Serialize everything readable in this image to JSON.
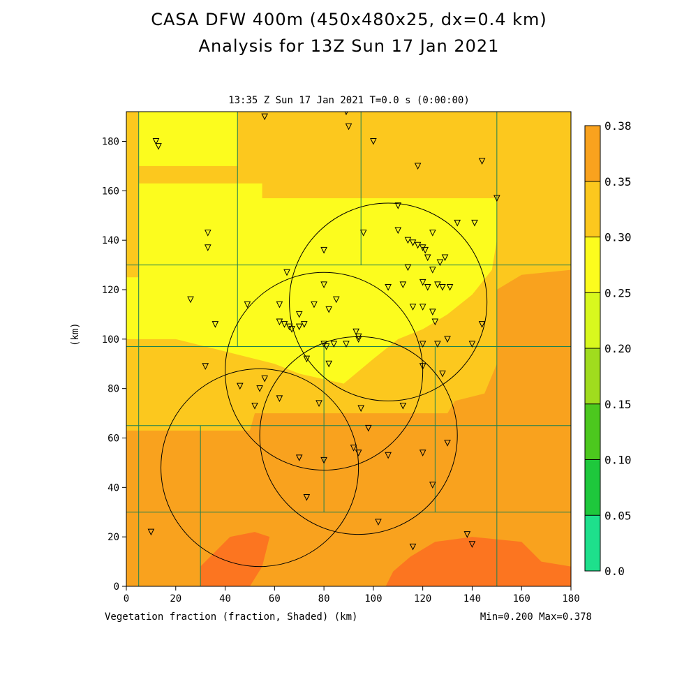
{
  "header": {
    "title_line1": "CASA DFW 400m (450x480x25, dx=0.4 km)",
    "title_line2": "Analysis for 13Z Sun 17 Jan 2021",
    "subtitle": "13:35 Z Sun 17 Jan 2021   T=0.0 s (0:00:00)"
  },
  "footer": {
    "field_label": "Vegetation fraction (fraction, Shaded)  (km)",
    "min_max": "Min=0.200 Max=0.378"
  },
  "colors": {
    "c025_030": "#fcc81e",
    "c030_035": "#f9a21e",
    "c035_038": "#fc7520",
    "c020_025": "#fcfc1e",
    "border": "#1e8050",
    "frame": "#000000"
  },
  "chart_data": {
    "type": "heatmap",
    "title": "CASA DFW 400m (450x480x25, dx=0.4 km)",
    "subtitle": "Analysis for 13Z Sun 17 Jan 2021",
    "time_label": "13:35 Z Sun 17 Jan 2021   T=0.0 s (0:00:00)",
    "xlabel": "(km)",
    "ylabel": "(km)",
    "field": "Vegetation fraction (fraction, Shaded)",
    "xlim": [
      0,
      180
    ],
    "ylim": [
      0,
      192
    ],
    "xticks": [
      0,
      20,
      40,
      60,
      80,
      100,
      120,
      140,
      160,
      180
    ],
    "yticks": [
      0,
      20,
      40,
      60,
      80,
      100,
      120,
      140,
      160,
      180
    ],
    "min": 0.2,
    "max": 0.378,
    "colorbar": {
      "levels": [
        "0.0",
        "0.05",
        "0.10",
        "0.15",
        "0.20",
        "0.25",
        "0.30",
        "0.35",
        "0.38"
      ],
      "colors": [
        "#1ee08c",
        "#1ec83c",
        "#4cc81e",
        "#a0dc1e",
        "#d8f81e",
        "#fcfc1e",
        "#fcc81e",
        "#f9a21e"
      ]
    },
    "regions": [
      {
        "range": "0.30-0.35",
        "color": "#f9a21e",
        "polygon": [
          [
            0,
            0
          ],
          [
            180,
            0
          ],
          [
            180,
            192
          ],
          [
            0,
            192
          ]
        ]
      },
      {
        "range": "0.25-0.30",
        "color": "#fcc81e",
        "polygon": [
          [
            0,
            63
          ],
          [
            50,
            63
          ],
          [
            52,
            70
          ],
          [
            130,
            70
          ],
          [
            133,
            75
          ],
          [
            145,
            78
          ],
          [
            150,
            90
          ],
          [
            150,
            120
          ],
          [
            160,
            126
          ],
          [
            180,
            128
          ],
          [
            180,
            192
          ],
          [
            0,
            192
          ]
        ]
      },
      {
        "range": "0.20-0.25",
        "color": "#fcfc1e",
        "polygon": [
          [
            5,
            192
          ],
          [
            45,
            192
          ],
          [
            45,
            170
          ],
          [
            5,
            170
          ]
        ]
      },
      {
        "range": "0.20-0.25",
        "color": "#fcfc1e",
        "polygon": [
          [
            0,
            125
          ],
          [
            5,
            125
          ],
          [
            5,
            163
          ],
          [
            55,
            163
          ],
          [
            55,
            157
          ],
          [
            150,
            157
          ],
          [
            150,
            140
          ],
          [
            148,
            128
          ],
          [
            140,
            118
          ],
          [
            130,
            110
          ],
          [
            120,
            104
          ],
          [
            110,
            100
          ],
          [
            100,
            92
          ],
          [
            88,
            82
          ],
          [
            70,
            86
          ],
          [
            60,
            90
          ],
          [
            40,
            95
          ],
          [
            20,
            100
          ],
          [
            0,
            100
          ]
        ]
      },
      {
        "range": "0.35-0.38",
        "color": "#fc7520",
        "polygon": [
          [
            30,
            0
          ],
          [
            50,
            0
          ],
          [
            55,
            8
          ],
          [
            58,
            20
          ],
          [
            52,
            22
          ],
          [
            42,
            20
          ],
          [
            30,
            8
          ]
        ]
      },
      {
        "range": "0.35-0.38",
        "color": "#fc7520",
        "polygon": [
          [
            105,
            0
          ],
          [
            180,
            0
          ],
          [
            180,
            8
          ],
          [
            168,
            10
          ],
          [
            160,
            18
          ],
          [
            140,
            20
          ],
          [
            125,
            18
          ],
          [
            115,
            12
          ],
          [
            108,
            6
          ]
        ]
      }
    ],
    "county_lines": [
      [
        [
          0,
          130
        ],
        [
          180,
          130
        ]
      ],
      [
        [
          0,
          97
        ],
        [
          180,
          97
        ]
      ],
      [
        [
          0,
          65
        ],
        [
          180,
          65
        ]
      ],
      [
        [
          5,
          0
        ],
        [
          5,
          192
        ]
      ],
      [
        [
          45,
          97
        ],
        [
          45,
          192
        ]
      ],
      [
        [
          95,
          130
        ],
        [
          95,
          192
        ]
      ],
      [
        [
          150,
          0
        ],
        [
          150,
          192
        ]
      ],
      [
        [
          125,
          30
        ],
        [
          125,
          97
        ]
      ],
      [
        [
          80,
          30
        ],
        [
          80,
          97
        ]
      ],
      [
        [
          30,
          0
        ],
        [
          30,
          65
        ]
      ],
      [
        [
          0,
          30
        ],
        [
          180,
          30
        ]
      ]
    ],
    "range_rings": [
      {
        "center": [
          106,
          115
        ],
        "radius": 40
      },
      {
        "center": [
          80,
          87
        ],
        "radius": 40
      },
      {
        "center": [
          94,
          61
        ],
        "radius": 40
      },
      {
        "center": [
          54,
          48
        ],
        "radius": 40
      }
    ],
    "stations": [
      [
        12,
        180
      ],
      [
        13,
        178
      ],
      [
        56,
        190
      ],
      [
        89,
        192
      ],
      [
        90,
        186
      ],
      [
        100,
        180
      ],
      [
        118,
        170
      ],
      [
        144,
        172
      ],
      [
        150,
        157
      ],
      [
        33,
        143
      ],
      [
        33,
        137
      ],
      [
        110,
        154
      ],
      [
        96,
        143
      ],
      [
        110,
        144
      ],
      [
        114,
        140
      ],
      [
        116,
        139
      ],
      [
        118,
        138
      ],
      [
        120,
        137
      ],
      [
        121,
        136
      ],
      [
        124,
        143
      ],
      [
        134,
        147
      ],
      [
        141,
        147
      ],
      [
        80,
        136
      ],
      [
        122,
        133
      ],
      [
        124,
        128
      ],
      [
        127,
        131
      ],
      [
        129,
        133
      ],
      [
        114,
        129
      ],
      [
        65,
        127
      ],
      [
        80,
        122
      ],
      [
        106,
        121
      ],
      [
        112,
        122
      ],
      [
        120,
        123
      ],
      [
        122,
        121
      ],
      [
        126,
        122
      ],
      [
        128,
        121
      ],
      [
        131,
        121
      ],
      [
        26,
        116
      ],
      [
        49,
        114
      ],
      [
        62,
        114
      ],
      [
        76,
        114
      ],
      [
        85,
        116
      ],
      [
        116,
        113
      ],
      [
        120,
        113
      ],
      [
        124,
        111
      ],
      [
        125,
        107
      ],
      [
        36,
        106
      ],
      [
        62,
        107
      ],
      [
        64,
        106
      ],
      [
        66,
        105
      ],
      [
        67,
        104
      ],
      [
        70,
        105
      ],
      [
        72,
        106
      ],
      [
        82,
        112
      ],
      [
        70,
        110
      ],
      [
        93,
        103
      ],
      [
        94,
        101
      ],
      [
        94,
        100
      ],
      [
        89,
        98
      ],
      [
        84,
        98
      ],
      [
        80,
        98
      ],
      [
        81,
        97
      ],
      [
        120,
        98
      ],
      [
        126,
        98
      ],
      [
        130,
        100
      ],
      [
        140,
        98
      ],
      [
        144,
        106
      ],
      [
        73,
        92
      ],
      [
        82,
        90
      ],
      [
        120,
        89
      ],
      [
        128,
        86
      ],
      [
        32,
        89
      ],
      [
        56,
        84
      ],
      [
        46,
        81
      ],
      [
        54,
        80
      ],
      [
        62,
        76
      ],
      [
        78,
        74
      ],
      [
        52,
        73
      ],
      [
        95,
        72
      ],
      [
        112,
        73
      ],
      [
        98,
        64
      ],
      [
        92,
        56
      ],
      [
        94,
        54
      ],
      [
        106,
        53
      ],
      [
        120,
        54
      ],
      [
        130,
        58
      ],
      [
        70,
        52
      ],
      [
        80,
        51
      ],
      [
        124,
        41
      ],
      [
        73,
        36
      ],
      [
        102,
        26
      ],
      [
        10,
        22
      ],
      [
        116,
        16
      ],
      [
        138,
        21
      ],
      [
        140,
        17
      ]
    ]
  }
}
